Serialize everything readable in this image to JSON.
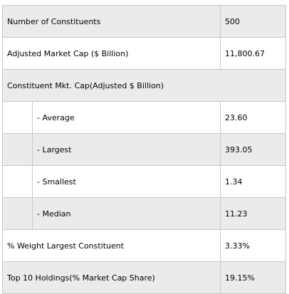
{
  "rows": [
    {
      "label": "Number of Constituents",
      "value": "500"
    },
    {
      "label": "Adjusted Market Cap ($ Billion)",
      "value": "11,800.67"
    },
    {
      "label": "Constituent Mkt. Cap(Adjusted $ Billion)"
    },
    {
      "label": "- Average",
      "value": "23.60"
    },
    {
      "label": "- Largest",
      "value": "393.05"
    },
    {
      "label": "- Smallest",
      "value": "1.34"
    },
    {
      "label": "- Median",
      "value": "11.23"
    },
    {
      "label": "% Weight Largest Constituent",
      "value": "3.33%"
    },
    {
      "label": "Top 10 Holdings(% Market Cap Share)",
      "value": "19.15%"
    }
  ]
}
